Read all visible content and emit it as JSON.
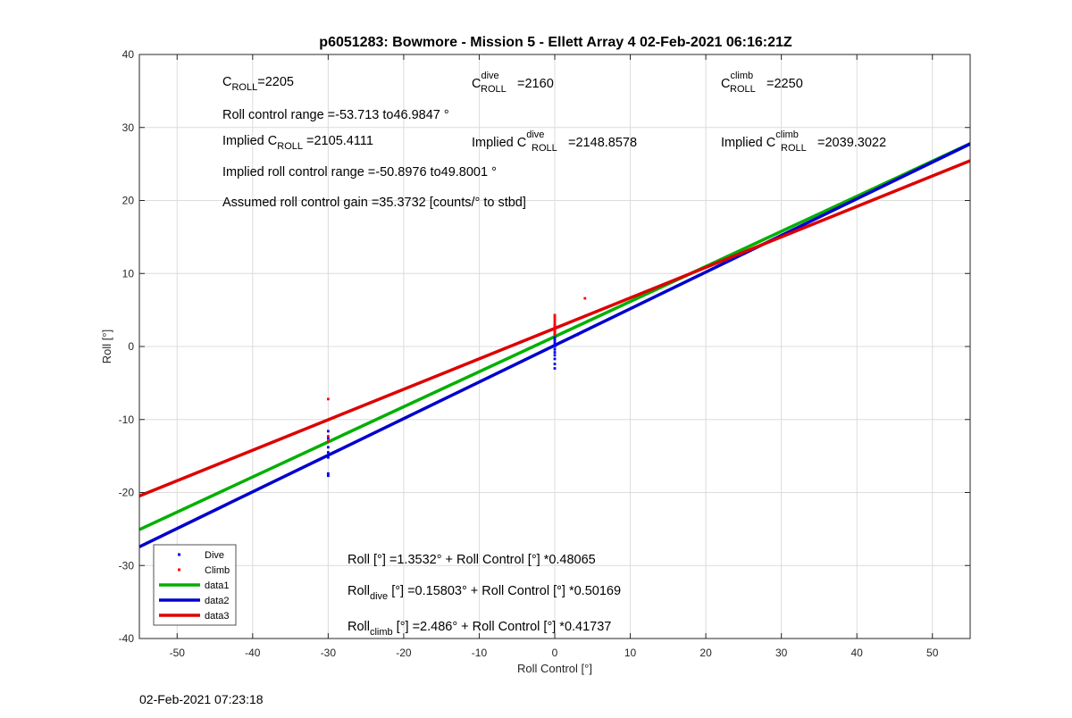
{
  "chart_data": {
    "type": "scatter",
    "title": "p6051283: Bowmore - Mission 5 - Ellett Array 4 02-Feb-2021 06:16:21Z",
    "xlabel": "Roll Control [°]",
    "ylabel": "Roll [°]",
    "xlim": [
      -55,
      55
    ],
    "ylim": [
      -40,
      40
    ],
    "xticks": [
      -50,
      -40,
      -30,
      -20,
      -10,
      0,
      10,
      20,
      30,
      40,
      50
    ],
    "yticks": [
      -40,
      -30,
      -20,
      -10,
      0,
      10,
      20,
      30,
      40
    ],
    "grid": true,
    "legend_position": "bottom-left",
    "series": [
      {
        "name": "Dive",
        "kind": "points",
        "color": "#0000ff",
        "x": [
          -30,
          -30,
          -30,
          -30,
          -30,
          -30,
          -30,
          0,
          0,
          0,
          0,
          0,
          0,
          0,
          0,
          0,
          0,
          0,
          0,
          0,
          0,
          0,
          0,
          3
        ],
        "y": [
          -11.6,
          -12.6,
          -13.8,
          -14.5,
          -15.2,
          -17.4,
          -17.7,
          -3.0,
          -2.4,
          -1.7,
          -1.2,
          -0.8,
          -0.4,
          0.0,
          0.3,
          0.6,
          0.9,
          1.2,
          1.6,
          2.0,
          2.4,
          2.8,
          0.1,
          1.6
        ]
      },
      {
        "name": "Climb",
        "kind": "points",
        "color": "#ff0000",
        "x": [
          -30,
          -30,
          -30,
          0,
          0,
          0,
          0,
          0,
          0,
          0,
          0,
          0,
          0,
          0,
          0,
          4
        ],
        "y": [
          -7.2,
          -12.3,
          -13.0,
          1.6,
          2.0,
          2.3,
          2.6,
          2.9,
          3.1,
          3.4,
          3.7,
          4.0,
          4.3,
          1.8,
          2.2,
          6.6
        ]
      },
      {
        "name": "data1",
        "kind": "line",
        "color": "#00b000",
        "intercept": 1.3532,
        "slope": 0.48065
      },
      {
        "name": "data2",
        "kind": "line",
        "color": "#0000cc",
        "intercept": 0.15803,
        "slope": 0.50169
      },
      {
        "name": "data3",
        "kind": "line",
        "color": "#dd0000",
        "intercept": 2.486,
        "slope": 0.41737
      }
    ],
    "annotations": {
      "c_roll_base": "C",
      "c_roll_sub": "ROLL",
      "c_roll_value": "=2205",
      "c_dive_base": "C",
      "c_dive_sup": "dive",
      "c_dive_sub": "ROLL",
      "c_dive_value": " =2160",
      "c_climb_base": "C",
      "c_climb_sup": "climb",
      "c_climb_sub": "ROLL",
      "c_climb_value": " =2250",
      "roll_range": "Roll control range =-53.713 to46.9847 °",
      "implied_c_prefix": "Implied C",
      "implied_c_sub": "ROLL",
      "implied_c_value": " =2105.4111",
      "implied_dive_prefix": "Implied C",
      "implied_dive_sup": "dive",
      "implied_dive_sub": "ROLL",
      "implied_dive_value": " =2148.8578",
      "implied_climb_prefix": "Implied C",
      "implied_climb_sup": "climb",
      "implied_climb_sub": "ROLL",
      "implied_climb_value": " =2039.3022",
      "implied_range": "Implied roll control range =-50.8976 to49.8001 °",
      "gain": "Assumed roll control gain =35.3732 [counts/° to stbd]",
      "fit_all": "Roll [°] =1.3532° + Roll Control [°] *0.48065",
      "fit_dive_base": "Roll",
      "fit_dive_sub": "dive",
      "fit_dive_rest": " [°] =0.15803° + Roll Control [°] *0.50169",
      "fit_climb_base": "Roll",
      "fit_climb_sub": "climb",
      "fit_climb_rest": " [°] =2.486° + Roll Control [°] *0.41737"
    },
    "timestamp": "02-Feb-2021 07:23:18"
  }
}
